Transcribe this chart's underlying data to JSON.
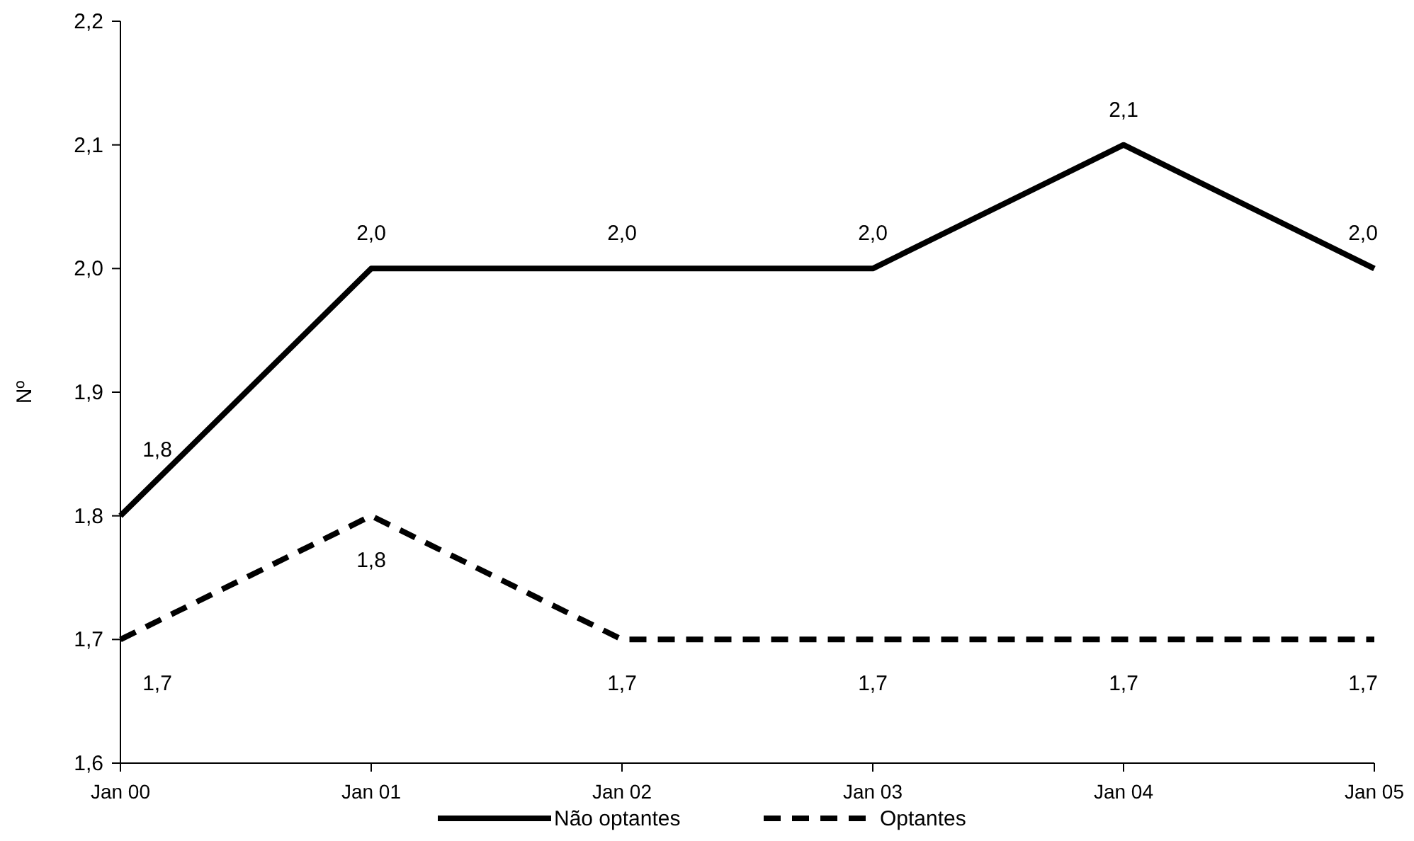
{
  "chart_data": {
    "type": "line",
    "ylabel": "Nº",
    "categories": [
      "Jan 00",
      "Jan 01",
      "Jan 02",
      "Jan 03",
      "Jan 04",
      "Jan 05"
    ],
    "series": [
      {
        "name": "Não optantes",
        "color": "#000000",
        "line_style": "solid",
        "values": [
          1.8,
          2.0,
          2.0,
          2.0,
          2.1,
          2.0
        ],
        "value_labels": [
          "1,8",
          "2,0",
          "2,0",
          "2,0",
          "2,1",
          "2,0"
        ]
      },
      {
        "name": "Optantes",
        "color": "#000000",
        "line_style": "dashed",
        "values": [
          1.7,
          1.8,
          1.7,
          1.7,
          1.7,
          1.7
        ],
        "value_labels": [
          "1,7",
          "1,8",
          "1,7",
          "1,7",
          "1,7",
          "1,7"
        ]
      }
    ],
    "ylim": [
      1.6,
      2.2
    ],
    "yticks": [
      {
        "value": 1.6,
        "label": "1,6"
      },
      {
        "value": 1.7,
        "label": "1,7"
      },
      {
        "value": 1.8,
        "label": "1,8"
      },
      {
        "value": 1.9,
        "label": "1,9"
      },
      {
        "value": 2.0,
        "label": "2,0"
      },
      {
        "value": 2.1,
        "label": "2,1"
      },
      {
        "value": 2.2,
        "label": "2,2"
      }
    ],
    "grid": false,
    "legend": "bottom",
    "marker": "none"
  }
}
